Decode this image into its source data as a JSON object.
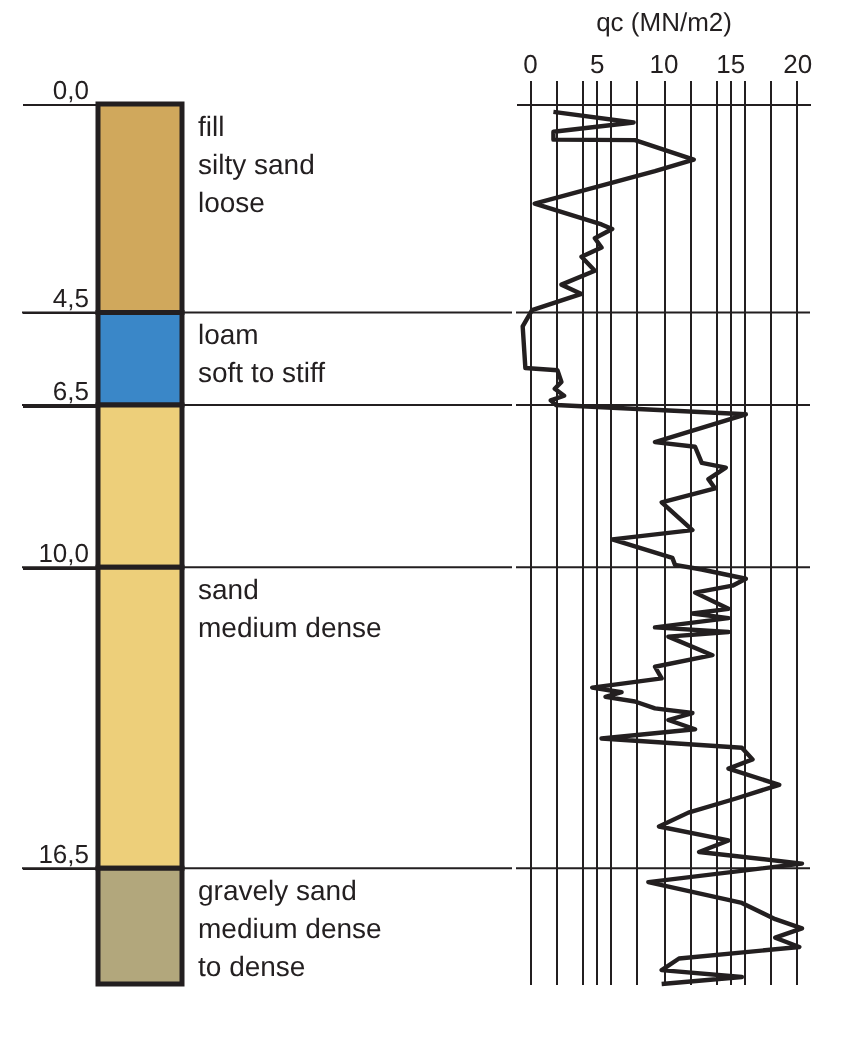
{
  "chart_data": [
    {
      "type": "bar",
      "stacked": true,
      "categories": [
        null
      ],
      "series": [
        {
          "name": "fill\nsilty sand\nloose",
          "color": "#d0a85c",
          "values": [
            4.5
          ]
        },
        {
          "name": "loam\nsoft to stiff",
          "color": "#3a87c8",
          "values": [
            2.0
          ]
        },
        {
          "color": "#edcf7a",
          "values": [
            3.5
          ]
        },
        {
          "name": "sand\nmedium dense",
          "color": "#edcf7a",
          "values": [
            6.5
          ]
        },
        {
          "name": "gravely sand\nmedium dense\nto dense",
          "color": "#b2a77c",
          "values": [
            2.5
          ]
        }
      ],
      "ylim": [
        19,
        0
      ],
      "yticks": [
        {
          "value": 0,
          "label": "0,0"
        },
        {
          "value": 4.5,
          "label": "4,5"
        },
        {
          "value": 6.5,
          "label": "6,5"
        },
        {
          "value": 10,
          "label": "10,0"
        },
        {
          "value": 16.5,
          "label": "16,5"
        }
      ],
      "ref_lines": [
        {
          "axis": "y",
          "value": 4.5
        },
        {
          "axis": "y",
          "value": 6.5
        },
        {
          "axis": "y",
          "value": 10
        },
        {
          "axis": "y",
          "value": 16.5
        }
      ],
      "tick_labels": "y"
    },
    {
      "type": "line",
      "orientation": "horizontal",
      "xlabel": "qc (MN/m2)",
      "x": [
        0.17,
        0.4,
        0.6,
        0.77,
        0.78,
        1.2,
        1.45,
        2.15,
        2.6,
        2.7,
        2.9,
        3.1,
        3.3,
        3.6,
        3.9,
        4.1,
        4.45,
        4.8,
        5.7,
        5.75,
        6.0,
        6.15,
        6.3,
        6.4,
        6.5,
        6.7,
        7.3,
        7.4,
        7.75,
        7.85,
        8.1,
        8.3,
        8.6,
        9.2,
        9.4,
        9.8,
        9.95,
        10.05,
        10.25,
        10.4,
        10.55,
        10.9,
        11.0,
        11.1,
        11.3,
        11.4,
        11.5,
        11.9,
        12.15,
        12.4,
        12.6,
        12.7,
        12.8,
        12.9,
        13.05,
        13.15,
        13.3,
        13.5,
        13.7,
        13.9,
        14.15,
        14.35,
        14.7,
        15.0,
        15.3,
        15.6,
        15.9,
        16.15,
        16.4,
        16.8,
        17.25,
        17.6,
        17.8,
        18.0,
        18.2,
        18.45,
        18.7,
        18.85,
        19.0
      ],
      "series": [
        {
          "color": "#231f20",
          "values": [
            1.8,
            7.8,
            1.8,
            1.8,
            7.9,
            12.3,
            9.4,
            0.4,
            5.4,
            6.2,
            4.9,
            5.4,
            3.9,
            4.9,
            2.4,
            3.9,
            0.2,
            -0.5,
            -0.3,
            2.1,
            2.4,
            1.9,
            2.6,
            1.6,
            2.0,
            16.2,
            9.4,
            12.4,
            12.9,
            14.7,
            13.4,
            13.9,
            9.9,
            12.2,
            6.2,
            10.7,
            10.9,
            12.9,
            16.2,
            15.2,
            12.4,
            14.9,
            12.2,
            14.9,
            9.4,
            14.9,
            10.4,
            13.7,
            9.4,
            9.9,
            4.7,
            6.9,
            5.7,
            7.9,
            9.4,
            12.2,
            10.4,
            12.4,
            5.4,
            15.9,
            16.7,
            14.9,
            18.7,
            15.4,
            11.9,
            9.7,
            14.9,
            12.7,
            20.4,
            8.9,
            15.9,
            18.4,
            20.4,
            18.4,
            20.2,
            11.2,
            9.9,
            15.9,
            9.9
          ]
        }
      ],
      "xlim": [
        -1,
        21
      ],
      "xticks": [
        0,
        {
          "value": 2,
          "label": null
        },
        {
          "value": 4,
          "label": null
        },
        5,
        {
          "value": 6,
          "label": null
        },
        {
          "value": 8,
          "label": null
        },
        10,
        {
          "value": 12,
          "label": null
        },
        {
          "value": 14,
          "label": null
        },
        15,
        {
          "value": 16,
          "label": null
        },
        {
          "value": 18,
          "label": null
        },
        20
      ],
      "ylim": [
        19,
        0
      ],
      "grid": "x",
      "line_style": "solid",
      "ref_lines": [
        {
          "axis": "y",
          "value": 4.5
        },
        {
          "axis": "y",
          "value": 6.5
        },
        {
          "axis": "y",
          "value": 10
        },
        {
          "axis": "y",
          "value": 16.5
        }
      ],
      "tick_labels": "x"
    }
  ]
}
